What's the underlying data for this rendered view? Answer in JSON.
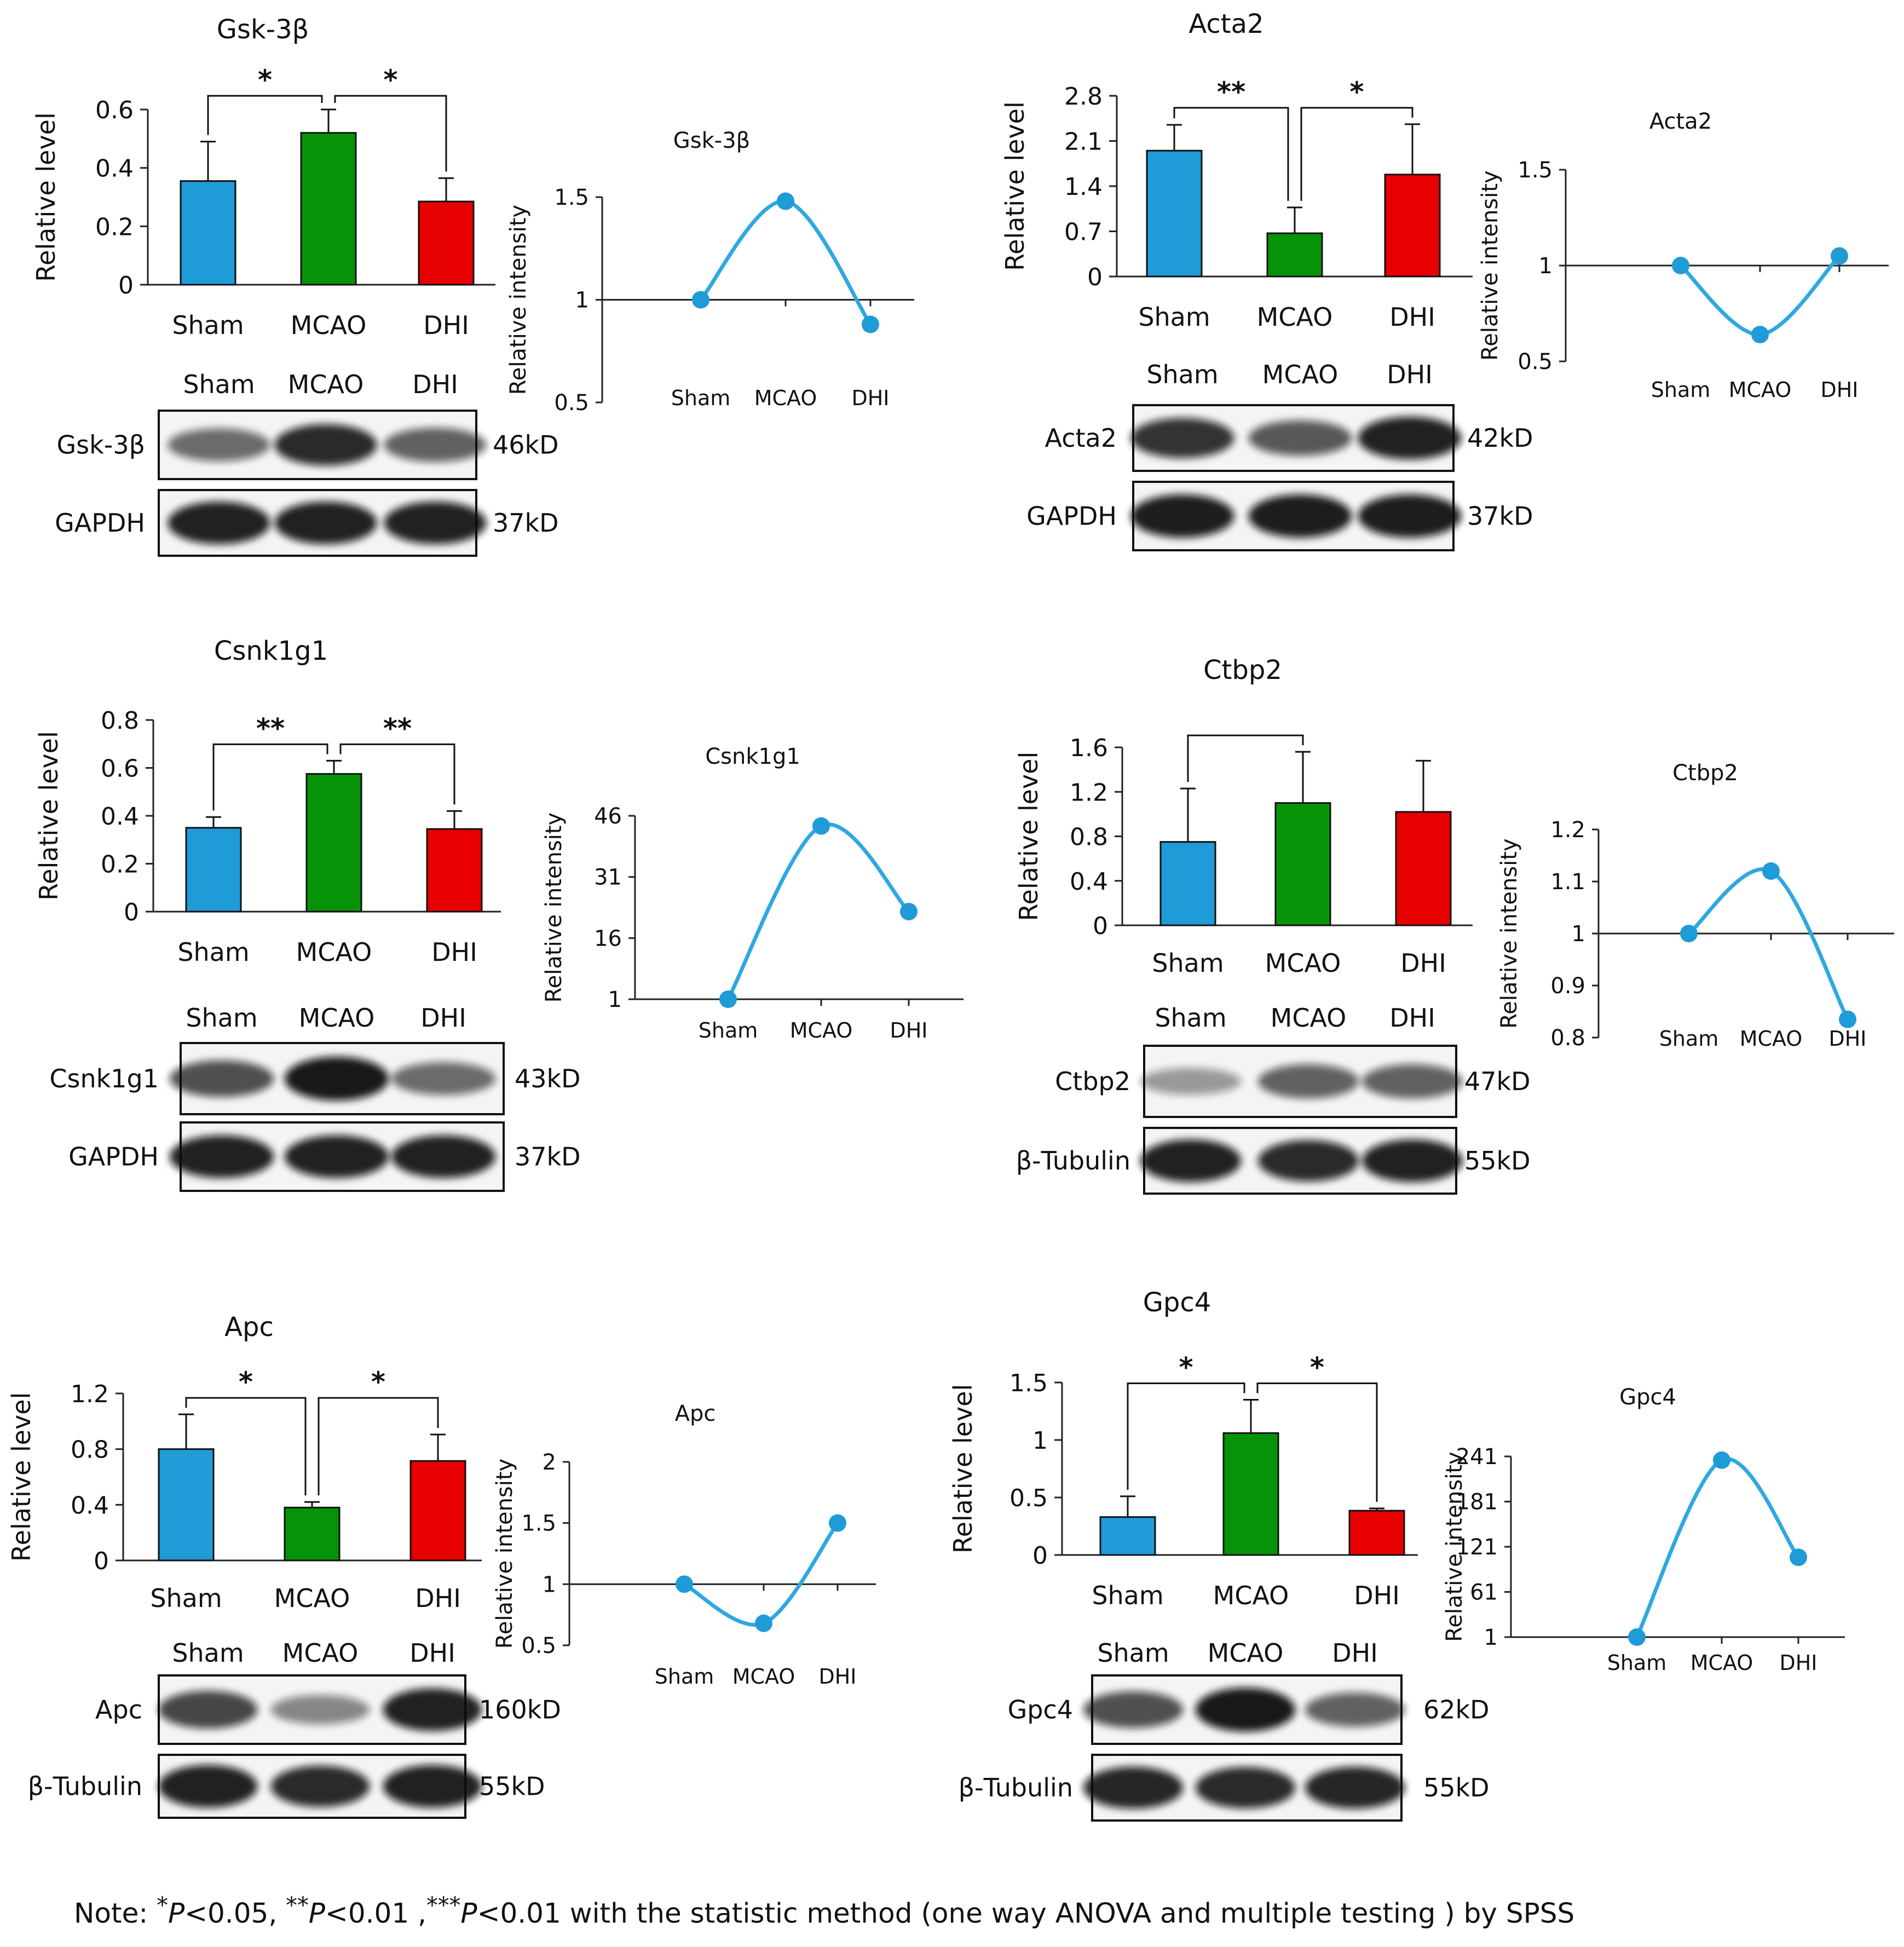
{
  "chart_data": [
    {
      "id": "gsk",
      "type": "bar",
      "title": "Gsk-3β",
      "ylabel": "Relative level",
      "categories": [
        "Sham",
        "MCAO",
        "DHI"
      ],
      "values": [
        0.355,
        0.52,
        0.285
      ],
      "errors": [
        0.135,
        0.08,
        0.08
      ],
      "colors": [
        "#1f9bd7",
        "#079307",
        "#e60000"
      ],
      "ylim": [
        0,
        0.6
      ],
      "yticks": [
        "0",
        "0.2",
        "0.4",
        "0.6"
      ],
      "sig": [
        {
          "label": "*",
          "from": 0,
          "to": 1
        },
        {
          "label": "*",
          "from": 1,
          "to": 2
        }
      ],
      "line": {
        "type": "line",
        "title": "Gsk-3β",
        "ylabel": "Relative intensity",
        "categories": [
          "Sham",
          "MCAO",
          "DHI"
        ],
        "values": [
          1,
          1.48,
          0.88
        ],
        "ylim": [
          0.5,
          1.5
        ],
        "yticks": [
          "0.5",
          "1",
          "1.5"
        ],
        "baseline": 1
      },
      "blot": {
        "lanes": [
          "Sham",
          "MCAO",
          "DHI"
        ],
        "rows": [
          {
            "name": "Gsk-3β",
            "size": "46kD",
            "intensity": [
              0.55,
              0.9,
              0.6
            ]
          },
          {
            "name": "GAPDH",
            "size": "37kD",
            "intensity": [
              0.95,
              0.95,
              0.95
            ]
          }
        ]
      }
    },
    {
      "id": "acta2",
      "type": "bar",
      "title": "Acta2",
      "ylabel": "Relative level",
      "categories": [
        "Sham",
        "MCAO",
        "DHI"
      ],
      "values": [
        1.95,
        0.67,
        1.58
      ],
      "errors": [
        0.4,
        0.4,
        0.78
      ],
      "colors": [
        "#1f9bd7",
        "#079307",
        "#e60000"
      ],
      "ylim": [
        0,
        2.8
      ],
      "yticks": [
        "0",
        "0.7",
        "1.4",
        "2.1",
        "2.8"
      ],
      "sig": [
        {
          "label": "**",
          "from": 0,
          "to": 1
        },
        {
          "label": "*",
          "from": 1,
          "to": 2
        }
      ],
      "line": {
        "type": "line",
        "title": "Acta2",
        "ylabel": "Relative intensity",
        "categories": [
          "Sham",
          "MCAO",
          "DHI"
        ],
        "values": [
          1,
          0.64,
          1.05
        ],
        "ylim": [
          0.5,
          1.5
        ],
        "yticks": [
          "0.5",
          "1",
          "1.5"
        ],
        "baseline": 1
      },
      "blot": {
        "lanes": [
          "Sham",
          "MCAO",
          "DHI"
        ],
        "rows": [
          {
            "name": "Acta2",
            "size": "42kD",
            "intensity": [
              0.85,
              0.65,
              0.95
            ]
          },
          {
            "name": "GAPDH",
            "size": "37kD",
            "intensity": [
              0.97,
              0.97,
              0.97
            ]
          }
        ]
      }
    },
    {
      "id": "csnk",
      "type": "bar",
      "title": "Csnk1g1",
      "ylabel": "Relative level",
      "categories": [
        "Sham",
        "MCAO",
        "DHI"
      ],
      "values": [
        0.35,
        0.575,
        0.345
      ],
      "errors": [
        0.045,
        0.055,
        0.075
      ],
      "colors": [
        "#1f9bd7",
        "#079307",
        "#e60000"
      ],
      "ylim": [
        0,
        0.8
      ],
      "yticks": [
        "0",
        "0.2",
        "0.4",
        "0.6",
        "0.8"
      ],
      "sig": [
        {
          "label": "**",
          "from": 0,
          "to": 1
        },
        {
          "label": "**",
          "from": 1,
          "to": 2
        }
      ],
      "line": {
        "type": "line",
        "title": "Csnk1g1",
        "ylabel": "Relative intensity",
        "categories": [
          "Sham",
          "MCAO",
          "DHI"
        ],
        "values": [
          1,
          43.5,
          22.5
        ],
        "ylim": [
          1,
          46
        ],
        "yticks": [
          "1",
          "16",
          "31",
          "46"
        ],
        "baseline": 1
      },
      "blot": {
        "lanes": [
          "Sham",
          "MCAO",
          "DHI"
        ],
        "rows": [
          {
            "name": "Csnk1g1",
            "size": "43kD",
            "intensity": [
              0.7,
              1.0,
              0.55
            ]
          },
          {
            "name": "GAPDH",
            "size": "37kD",
            "intensity": [
              0.95,
              0.95,
              0.95
            ]
          }
        ]
      }
    },
    {
      "id": "ctbp",
      "type": "bar",
      "title": "Ctbp2",
      "ylabel": "Relative level",
      "categories": [
        "Sham",
        "MCAO",
        "DHI"
      ],
      "values": [
        0.75,
        1.1,
        1.02
      ],
      "errors": [
        0.48,
        0.46,
        0.46
      ],
      "colors": [
        "#1f9bd7",
        "#079307",
        "#e60000"
      ],
      "ylim": [
        0,
        1.6
      ],
      "yticks": [
        "0",
        "0.4",
        "0.8",
        "1.2",
        "1.6"
      ],
      "sig": [
        {
          "label": "",
          "from": 0,
          "to": 1
        }
      ],
      "line": {
        "type": "line",
        "title": "Ctbp2",
        "ylabel": "Relative intensity",
        "categories": [
          "Sham",
          "MCAO",
          "DHI"
        ],
        "values": [
          1,
          1.12,
          0.835
        ],
        "ylim": [
          0.8,
          1.2
        ],
        "yticks": [
          "0.8",
          "0.9",
          "1",
          "1.1",
          "1.2"
        ],
        "baseline": 1
      },
      "blot": {
        "lanes": [
          "Sham",
          "MCAO",
          "DHI"
        ],
        "rows": [
          {
            "name": "Ctbp2",
            "size": "47kD",
            "intensity": [
              0.3,
              0.6,
              0.6
            ]
          },
          {
            "name": "β-Tubulin",
            "size": "55kD",
            "intensity": [
              0.95,
              0.9,
              0.95
            ]
          }
        ]
      }
    },
    {
      "id": "apc",
      "type": "bar",
      "title": "Apc",
      "ylabel": "Relative level",
      "categories": [
        "Sham",
        "MCAO",
        "DHI"
      ],
      "values": [
        0.8,
        0.38,
        0.715
      ],
      "errors": [
        0.25,
        0.04,
        0.19
      ],
      "colors": [
        "#1f9bd7",
        "#079307",
        "#e60000"
      ],
      "ylim": [
        0,
        1.2
      ],
      "yticks": [
        "0",
        "0.4",
        "0.8",
        "1.2"
      ],
      "sig": [
        {
          "label": "*",
          "from": 0,
          "to": 1
        },
        {
          "label": "*",
          "from": 1,
          "to": 2
        }
      ],
      "line": {
        "type": "line",
        "title": "Apc",
        "ylabel": "Relative intensity",
        "categories": [
          "Sham",
          "MCAO",
          "DHI"
        ],
        "values": [
          1,
          0.68,
          1.5
        ],
        "ylim": [
          0.5,
          2
        ],
        "yticks": [
          "0.5",
          "1",
          "1.5",
          "2"
        ],
        "baseline": 1
      },
      "blot": {
        "lanes": [
          "Sham",
          "MCAO",
          "DHI"
        ],
        "rows": [
          {
            "name": "Apc",
            "size": "160kD",
            "intensity": [
              0.75,
              0.4,
              0.95
            ]
          },
          {
            "name": "β-Tubulin",
            "size": "55kD",
            "intensity": [
              0.95,
              0.9,
              0.95
            ]
          }
        ]
      }
    },
    {
      "id": "gpc",
      "type": "bar",
      "title": "Gpc4",
      "ylabel": "Relative level",
      "categories": [
        "Sham",
        "MCAO",
        "DHI"
      ],
      "values": [
        0.33,
        1.06,
        0.385
      ],
      "errors": [
        0.18,
        0.29,
        0.02
      ],
      "colors": [
        "#1f9bd7",
        "#079307",
        "#e60000"
      ],
      "ylim": [
        0,
        1.5
      ],
      "yticks": [
        "0",
        "0.5",
        "1",
        "1.5"
      ],
      "sig": [
        {
          "label": "*",
          "from": 0,
          "to": 1
        },
        {
          "label": "*",
          "from": 1,
          "to": 2
        }
      ],
      "line": {
        "type": "line",
        "title": "Gpc4",
        "ylabel": "Relative intensity",
        "categories": [
          "Sham",
          "MCAO",
          "DHI"
        ],
        "values": [
          1,
          236,
          107
        ],
        "ylim": [
          1,
          241
        ],
        "yticks": [
          "1",
          "61",
          "121",
          "181",
          "241"
        ],
        "baseline": 1
      },
      "blot": {
        "lanes": [
          "Sham",
          "MCAO",
          "DHI"
        ],
        "rows": [
          {
            "name": "Gpc4",
            "size": "62kD",
            "intensity": [
              0.7,
              1.0,
              0.6
            ]
          },
          {
            "name": "β-Tubulin",
            "size": "55kD",
            "intensity": [
              0.92,
              0.9,
              0.92
            ]
          }
        ]
      }
    }
  ],
  "note": {
    "prefix": "Note: ",
    "s1": "*",
    "p1": "P",
    "t1": "<0.05, ",
    "s2": "**",
    "p2": "P",
    "t2": "<0.01 ,",
    "s3": "***",
    "p3": "P",
    "t3": "<0.01 with the statistic method (one way ANOVA and multiple testing ) by SPSS"
  }
}
